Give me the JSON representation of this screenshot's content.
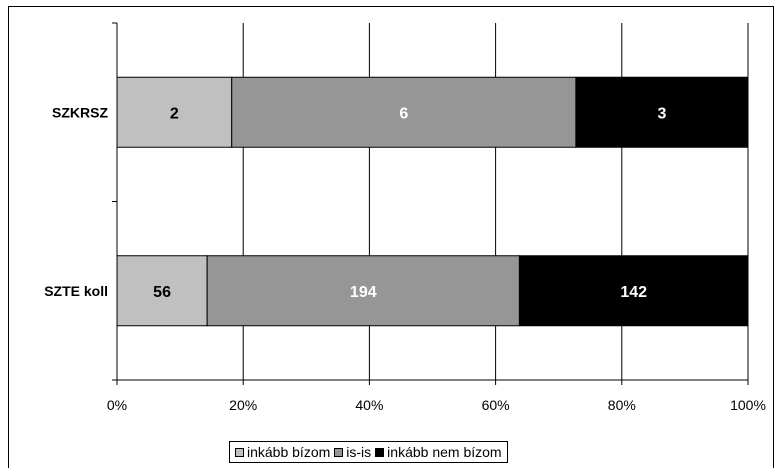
{
  "chart_data": {
    "type": "bar",
    "orientation": "horizontal",
    "stacked": "percent",
    "categories": [
      "SZKRSZ",
      "SZTE koll"
    ],
    "series": [
      {
        "name": "inkább bízom",
        "values": [
          2,
          56
        ],
        "color": "#c0c0c0",
        "label_color": "#000000"
      },
      {
        "name": "is-is",
        "values": [
          6,
          194
        ],
        "color": "#969696",
        "label_color": "#ffffff"
      },
      {
        "name": "inkább nem bízom",
        "values": [
          3,
          142
        ],
        "color": "#000000",
        "label_color": "#ffffff"
      }
    ],
    "xticks": [
      "0%",
      "20%",
      "40%",
      "60%",
      "80%",
      "100%"
    ],
    "xlim": [
      0,
      100
    ],
    "grid": "vertical",
    "legend": "bottom",
    "title": "",
    "xlabel": "",
    "ylabel": ""
  }
}
